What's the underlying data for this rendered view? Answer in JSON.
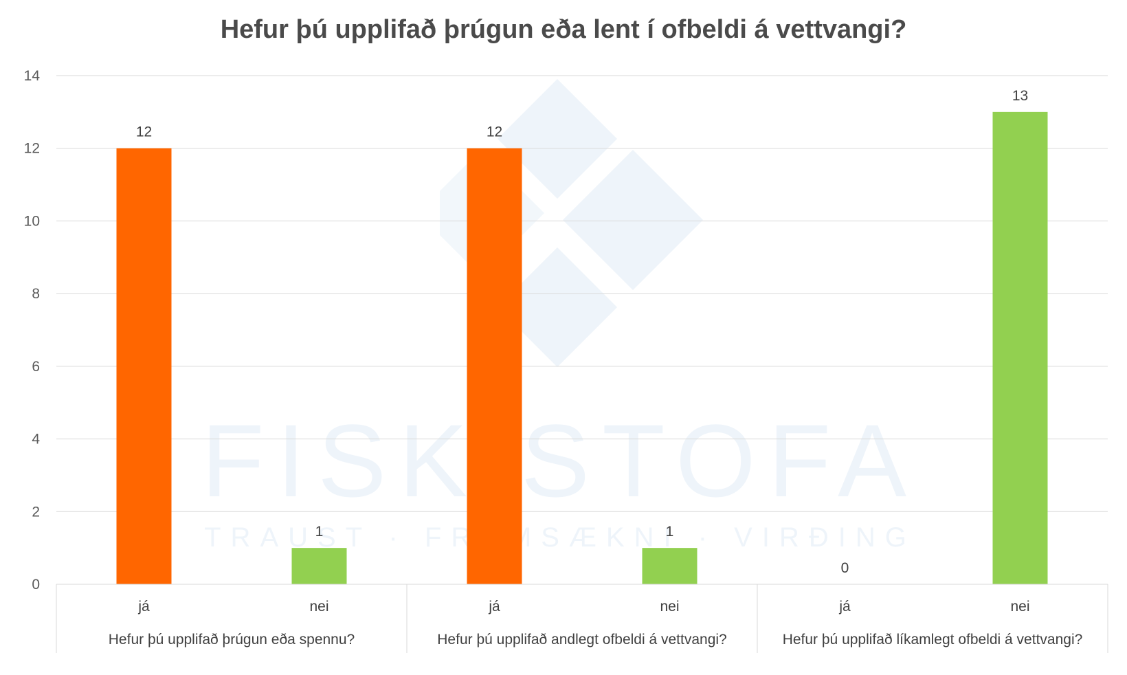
{
  "chart_data": {
    "type": "bar",
    "title": "Hefur þú upplifað þrúgun eða lent í ofbeldi á vettvangi?",
    "ylim": [
      0,
      14
    ],
    "yticks": [
      0,
      2,
      4,
      6,
      8,
      10,
      12,
      14
    ],
    "grid": true,
    "groups": [
      {
        "label": "Hefur þú upplifað þrúgun eða spennu?",
        "bars": [
          {
            "category": "já",
            "value": 12,
            "color": "#ff6600"
          },
          {
            "category": "nei",
            "value": 1,
            "color": "#92d050"
          }
        ]
      },
      {
        "label": "Hefur þú upplifað andlegt ofbeldi á vettvangi?",
        "bars": [
          {
            "category": "já",
            "value": 12,
            "color": "#ff6600"
          },
          {
            "category": "nei",
            "value": 1,
            "color": "#92d050"
          }
        ]
      },
      {
        "label": "Hefur þú upplifað líkamlegt ofbeldi á vettvangi?",
        "bars": [
          {
            "category": "já",
            "value": 0,
            "color": "#ff6600"
          },
          {
            "category": "nei",
            "value": 13,
            "color": "#92d050"
          }
        ]
      }
    ]
  },
  "watermark": {
    "name": "FISKISTOFA",
    "tagline": "TRAUST · FRAMSÆKNI · VIRÐING",
    "color": "#eef4fa"
  }
}
